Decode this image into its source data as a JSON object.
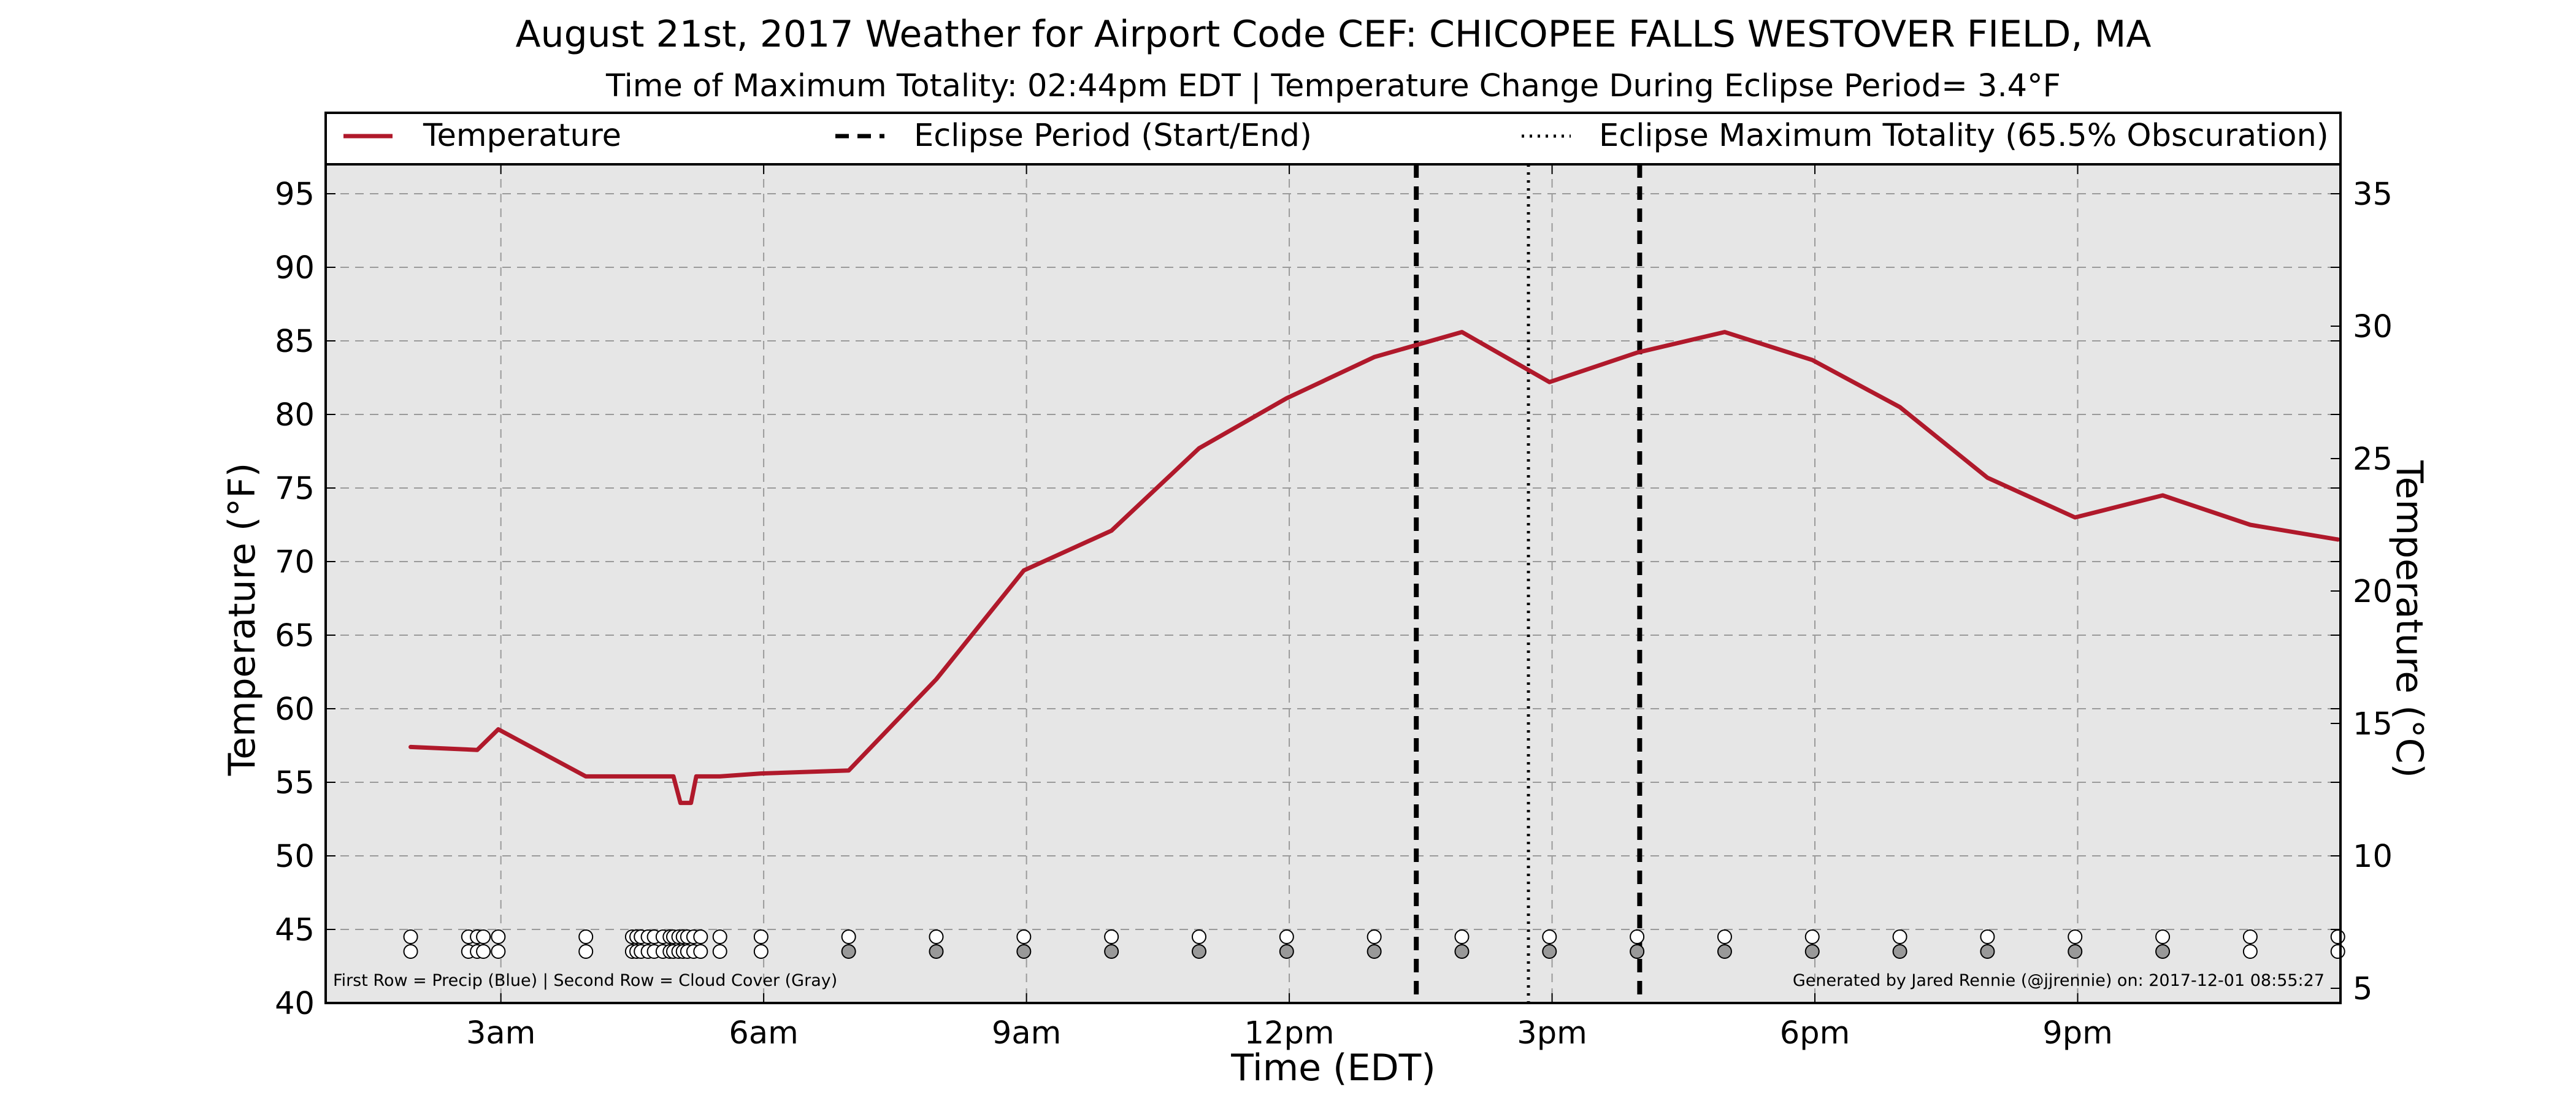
{
  "chart_data": {
    "type": "line",
    "title": "August 21st, 2017 Weather for Airport Code CEF: CHICOPEE FALLS WESTOVER FIELD, MA",
    "subtitle": "Time of Maximum Totality: 02:44pm EDT | Temperature Change During Eclipse Period= 3.4°F",
    "xlabel": "Time (EDT)",
    "ylabel_left": "Temperature (°F)",
    "ylabel_right": "Temperature (°C)",
    "xlim": [
      1.0,
      24.0
    ],
    "ylim": [
      40,
      97
    ],
    "x_ticks": [
      {
        "x": 3,
        "label": "3am"
      },
      {
        "x": 6,
        "label": "6am"
      },
      {
        "x": 9,
        "label": "9am"
      },
      {
        "x": 12,
        "label": "12pm"
      },
      {
        "x": 15,
        "label": "3pm"
      },
      {
        "x": 18,
        "label": "6pm"
      },
      {
        "x": 21,
        "label": "9pm"
      }
    ],
    "y_ticks_left": [
      40,
      45,
      50,
      55,
      60,
      65,
      70,
      75,
      80,
      85,
      90,
      95
    ],
    "y_ticks_right": [
      5,
      10,
      15,
      20,
      25,
      30,
      35
    ],
    "grid": true,
    "legend_position": "top",
    "legend": {
      "temperature": "Temperature",
      "eclipse_period": "Eclipse Period (Start/End)",
      "eclipse_max": "Eclipse Maximum Totality (65.5% Obscuration)"
    },
    "eclipse": {
      "start": 13.45,
      "end": 16.0,
      "max": 14.73
    },
    "series": [
      {
        "name": "Temperature",
        "color": "#b0192b",
        "x": [
          1.97,
          2.73,
          2.97,
          3.97,
          4.97,
          5.05,
          5.17,
          5.23,
          5.5,
          5.97,
          6.97,
          7.97,
          8.97,
          9.97,
          10.97,
          11.97,
          12.97,
          13.97,
          14.97,
          15.97,
          16.97,
          17.97,
          18.97,
          19.97,
          20.97,
          21.97,
          22.97,
          23.97
        ],
        "values": [
          57.4,
          57.2,
          58.6,
          55.4,
          55.4,
          53.6,
          53.6,
          55.4,
          55.4,
          55.6,
          55.8,
          62.0,
          69.4,
          72.1,
          77.7,
          81.1,
          83.9,
          85.6,
          82.2,
          84.2,
          85.6,
          83.7,
          80.5,
          75.7,
          73.0,
          74.5,
          72.5,
          71.5
        ]
      }
    ],
    "observations": {
      "precip_color": "#ffffff",
      "cloud_clear_color": "#ffffff",
      "cloud_cover_color": "#999999",
      "points": [
        {
          "x": 1.97,
          "cloud": false
        },
        {
          "x": 2.63,
          "cloud": false
        },
        {
          "x": 2.73,
          "cloud": false
        },
        {
          "x": 2.8,
          "cloud": false
        },
        {
          "x": 2.97,
          "cloud": false
        },
        {
          "x": 3.97,
          "cloud": false
        },
        {
          "x": 4.5,
          "cloud": false
        },
        {
          "x": 4.55,
          "cloud": false
        },
        {
          "x": 4.6,
          "cloud": false
        },
        {
          "x": 4.68,
          "cloud": false
        },
        {
          "x": 4.75,
          "cloud": false
        },
        {
          "x": 4.85,
          "cloud": false
        },
        {
          "x": 4.93,
          "cloud": false
        },
        {
          "x": 4.97,
          "cloud": false
        },
        {
          "x": 5.03,
          "cloud": false
        },
        {
          "x": 5.08,
          "cloud": false
        },
        {
          "x": 5.13,
          "cloud": false
        },
        {
          "x": 5.2,
          "cloud": false
        },
        {
          "x": 5.28,
          "cloud": false
        },
        {
          "x": 5.5,
          "cloud": false
        },
        {
          "x": 5.97,
          "cloud": false
        },
        {
          "x": 6.97,
          "cloud": true
        },
        {
          "x": 7.97,
          "cloud": true
        },
        {
          "x": 8.97,
          "cloud": true
        },
        {
          "x": 9.97,
          "cloud": true
        },
        {
          "x": 10.97,
          "cloud": true
        },
        {
          "x": 11.97,
          "cloud": true
        },
        {
          "x": 12.97,
          "cloud": true
        },
        {
          "x": 13.97,
          "cloud": true
        },
        {
          "x": 14.97,
          "cloud": true
        },
        {
          "x": 15.97,
          "cloud": true
        },
        {
          "x": 16.97,
          "cloud": true
        },
        {
          "x": 17.97,
          "cloud": true
        },
        {
          "x": 18.97,
          "cloud": true
        },
        {
          "x": 19.97,
          "cloud": true
        },
        {
          "x": 20.97,
          "cloud": true
        },
        {
          "x": 21.97,
          "cloud": true
        },
        {
          "x": 22.97,
          "cloud": false
        },
        {
          "x": 23.97,
          "cloud": false
        }
      ]
    },
    "footnote_left": "First Row = Precip (Blue) | Second Row = Cloud Cover (Gray)",
    "footnote_right": "Generated by Jared Rennie (@jjrennie) on: 2017-12-01 08:55:27",
    "colors": {
      "plot_background": "#e6e6e6",
      "grid": "#9a9a9a",
      "temperature_line": "#b0192b",
      "eclipse_lines": "#000000"
    }
  }
}
